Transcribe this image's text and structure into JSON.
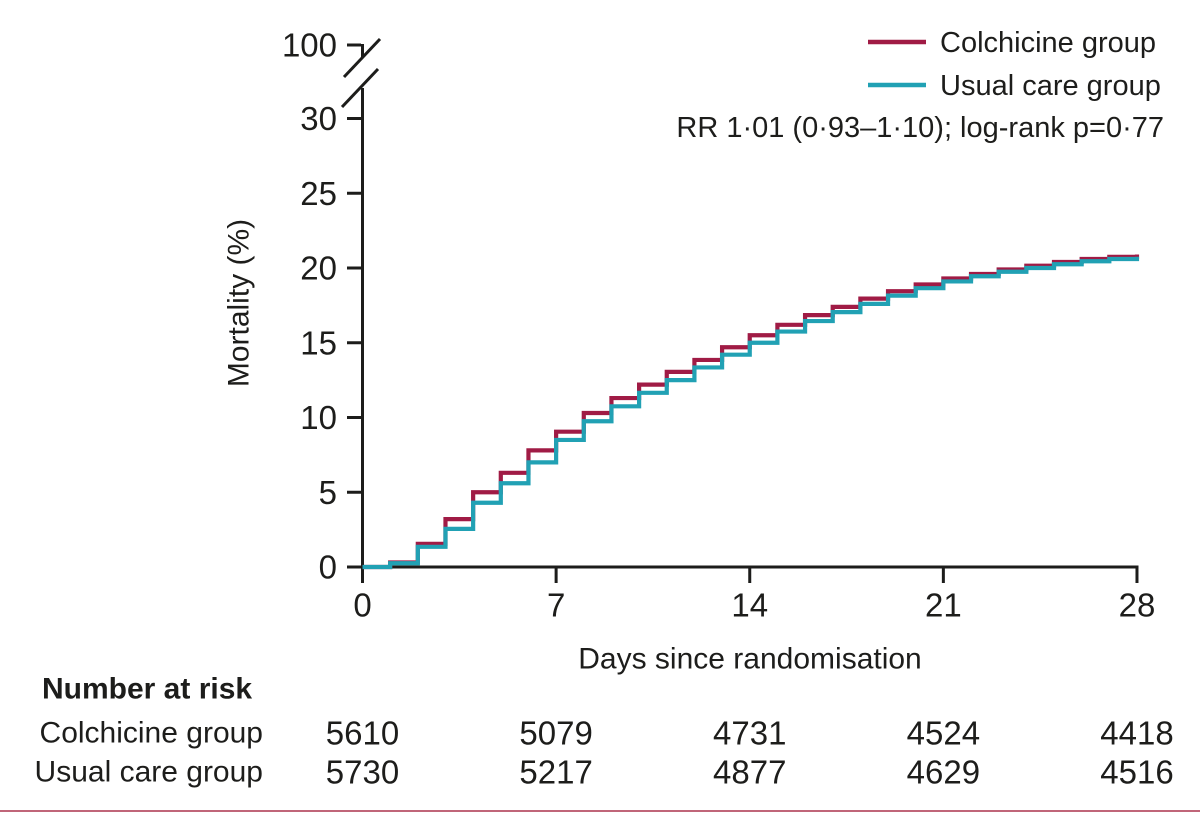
{
  "figure": {
    "y_axis": {
      "title": "Mortality (%)",
      "break_label": "100"
    },
    "x_axis": {
      "title": "Days since randomisation"
    },
    "legend": [
      {
        "label": "Colchicine group",
        "color": "#a01b45"
      },
      {
        "label": "Usual care group",
        "color": "#21a1b4"
      }
    ],
    "annotation": "RR 1·01 (0·93–1·10); log-rank p=0·77"
  },
  "chart_data": {
    "type": "line",
    "subtype": "kaplan-meier-step",
    "title": "",
    "xlabel": "Days since randomisation",
    "ylabel": "Mortality (%)",
    "x_ticks": [
      0,
      7,
      14,
      21,
      28
    ],
    "y_ticks": [
      0,
      5,
      10,
      15,
      20,
      25,
      30
    ],
    "y_axis_break_top_label": 100,
    "xlim": [
      0,
      28
    ],
    "ylim_display": [
      0,
      31
    ],
    "grid": false,
    "legend_position": "top-right",
    "annotation": "RR 1·01 (0·93–1·10); log-rank p=0·77",
    "x": [
      0,
      1,
      2,
      3,
      4,
      5,
      6,
      7,
      8,
      9,
      10,
      11,
      12,
      13,
      14,
      15,
      16,
      17,
      18,
      19,
      20,
      21,
      22,
      23,
      24,
      25,
      26,
      27,
      28
    ],
    "series": [
      {
        "name": "Colchicine group",
        "color": "#a01b45",
        "values": [
          0,
          0.3,
          1.55,
          3.2,
          5.0,
          6.3,
          7.8,
          9.05,
          10.3,
          11.3,
          12.2,
          13.05,
          13.85,
          14.7,
          15.5,
          16.2,
          16.85,
          17.4,
          17.95,
          18.45,
          18.9,
          19.3,
          19.6,
          19.9,
          20.15,
          20.4,
          20.6,
          20.75,
          20.9
        ]
      },
      {
        "name": "Usual care group",
        "color": "#21a1b4",
        "values": [
          0,
          0.25,
          1.35,
          2.55,
          4.3,
          5.6,
          7.0,
          8.5,
          9.75,
          10.75,
          11.65,
          12.5,
          13.35,
          14.2,
          15.0,
          15.75,
          16.45,
          17.05,
          17.6,
          18.15,
          18.65,
          19.1,
          19.45,
          19.75,
          20.0,
          20.25,
          20.45,
          20.6,
          20.75
        ]
      }
    ]
  },
  "risk_table": {
    "header": "Number at risk",
    "days": [
      0,
      7,
      14,
      21,
      28
    ],
    "rows": [
      {
        "label": "Colchicine group",
        "counts": [
          "5610",
          "5079",
          "4731",
          "4524",
          "4418"
        ]
      },
      {
        "label": "Usual care group",
        "counts": [
          "5730",
          "5217",
          "4877",
          "4629",
          "4516"
        ]
      }
    ]
  },
  "colors": {
    "colchicine": "#a01b45",
    "usual_care": "#21a1b4",
    "axis": "#1d1d1b",
    "text": "#1d1d1b",
    "bottom_rule": "#c06579",
    "background": "#ffffff"
  }
}
